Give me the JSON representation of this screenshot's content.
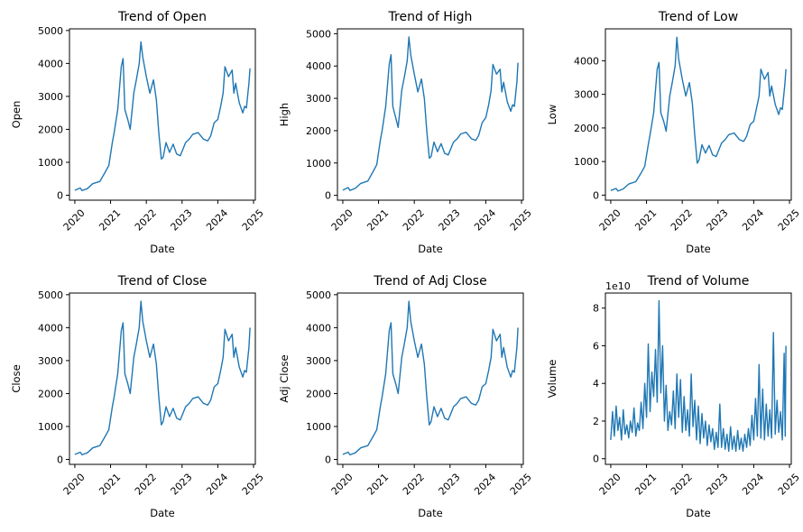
{
  "chart_data": [
    {
      "type": "line",
      "title": "Trend of Open",
      "xlabel": "Date",
      "ylabel": "Open",
      "xlim": [
        2019.85,
        2025.05
      ],
      "ylim": [
        -150,
        5050
      ],
      "xticks": [
        2020,
        2021,
        2022,
        2023,
        2024,
        2025
      ],
      "xtick_labels": [
        "2020",
        "2021",
        "2022",
        "2023",
        "2024",
        "2025"
      ],
      "yticks": [
        0,
        1000,
        2000,
        3000,
        4000,
        5000
      ],
      "ytick_labels": [
        "0",
        "1000",
        "2000",
        "3000",
        "4000",
        "5000"
      ],
      "offset_text": "",
      "series": [
        {
          "color": "#1f77b4",
          "x": [
            2020.0,
            2020.15,
            2020.2,
            2020.35,
            2020.5,
            2020.7,
            2020.85,
            2020.95,
            2021.05,
            2021.1,
            2021.2,
            2021.3,
            2021.35,
            2021.4,
            2021.48,
            2021.55,
            2021.65,
            2021.72,
            2021.8,
            2021.85,
            2021.9,
            2022.0,
            2022.1,
            2022.2,
            2022.28,
            2022.35,
            2022.42,
            2022.47,
            2022.55,
            2022.65,
            2022.75,
            2022.85,
            2022.95,
            2023.1,
            2023.2,
            2023.3,
            2023.45,
            2023.6,
            2023.72,
            2023.8,
            2023.9,
            2024.0,
            2024.08,
            2024.15,
            2024.2,
            2024.3,
            2024.4,
            2024.45,
            2024.5,
            2024.6,
            2024.7,
            2024.75,
            2024.8,
            2024.87,
            2024.9
          ],
          "y": [
            150,
            220,
            140,
            200,
            350,
            420,
            700,
            900,
            1600,
            1900,
            2600,
            3900,
            4150,
            2600,
            2300,
            2000,
            3100,
            3500,
            4000,
            4650,
            4200,
            3600,
            3100,
            3500,
            2900,
            1900,
            1100,
            1150,
            1600,
            1300,
            1550,
            1250,
            1200,
            1600,
            1700,
            1850,
            1900,
            1700,
            1650,
            1800,
            2200,
            2300,
            2700,
            3100,
            3900,
            3600,
            3800,
            3100,
            3400,
            2800,
            2500,
            2700,
            2650,
            3400,
            3850
          ]
        }
      ]
    },
    {
      "type": "line",
      "title": "Trend of High",
      "xlabel": "Date",
      "ylabel": "High",
      "xlim": [
        2019.85,
        2025.05
      ],
      "ylim": [
        -150,
        5150
      ],
      "xticks": [
        2020,
        2021,
        2022,
        2023,
        2024,
        2025
      ],
      "xtick_labels": [
        "2020",
        "2021",
        "2022",
        "2023",
        "2024",
        "2025"
      ],
      "yticks": [
        0,
        1000,
        2000,
        3000,
        4000,
        5000
      ],
      "ytick_labels": [
        "0",
        "1000",
        "2000",
        "3000",
        "4000",
        "5000"
      ],
      "offset_text": "",
      "series": [
        {
          "color": "#1f77b4",
          "x": [
            2020.0,
            2020.15,
            2020.2,
            2020.35,
            2020.5,
            2020.7,
            2020.85,
            2020.95,
            2021.05,
            2021.1,
            2021.2,
            2021.3,
            2021.35,
            2021.4,
            2021.48,
            2021.55,
            2021.65,
            2021.72,
            2021.8,
            2021.85,
            2021.9,
            2022.0,
            2022.1,
            2022.2,
            2022.28,
            2022.35,
            2022.42,
            2022.47,
            2022.55,
            2022.65,
            2022.75,
            2022.85,
            2022.95,
            2023.1,
            2023.2,
            2023.3,
            2023.45,
            2023.6,
            2023.72,
            2023.8,
            2023.9,
            2024.0,
            2024.08,
            2024.15,
            2024.2,
            2024.3,
            2024.4,
            2024.45,
            2024.5,
            2024.6,
            2024.7,
            2024.75,
            2024.8,
            2024.87,
            2024.9
          ],
          "y": [
            160,
            240,
            150,
            215,
            370,
            440,
            740,
            950,
            1700,
            2000,
            2750,
            4050,
            4350,
            2750,
            2400,
            2100,
            3250,
            3650,
            4150,
            4900,
            4350,
            3750,
            3200,
            3600,
            3000,
            2000,
            1150,
            1200,
            1650,
            1350,
            1600,
            1300,
            1250,
            1650,
            1750,
            1900,
            1950,
            1750,
            1700,
            1850,
            2250,
            2400,
            2800,
            3250,
            4050,
            3750,
            3900,
            3200,
            3500,
            2900,
            2600,
            2800,
            2750,
            3500,
            4100
          ]
        }
      ]
    },
    {
      "type": "line",
      "title": "Trend of Low",
      "xlabel": "Date",
      "ylabel": "Low",
      "xlim": [
        2019.85,
        2025.05
      ],
      "ylim": [
        -150,
        4950
      ],
      "xticks": [
        2020,
        2021,
        2022,
        2023,
        2024,
        2025
      ],
      "xtick_labels": [
        "2020",
        "2021",
        "2022",
        "2023",
        "2024",
        "2025"
      ],
      "yticks": [
        0,
        1000,
        2000,
        3000,
        4000
      ],
      "ytick_labels": [
        "0",
        "1000",
        "2000",
        "3000",
        "4000"
      ],
      "offset_text": "",
      "series": [
        {
          "color": "#1f77b4",
          "x": [
            2020.0,
            2020.15,
            2020.2,
            2020.35,
            2020.5,
            2020.7,
            2020.85,
            2020.95,
            2021.05,
            2021.1,
            2021.2,
            2021.3,
            2021.35,
            2021.4,
            2021.48,
            2021.55,
            2021.65,
            2021.72,
            2021.8,
            2021.85,
            2021.9,
            2022.0,
            2022.1,
            2022.2,
            2022.28,
            2022.35,
            2022.42,
            2022.47,
            2022.55,
            2022.65,
            2022.75,
            2022.85,
            2022.95,
            2023.1,
            2023.2,
            2023.3,
            2023.45,
            2023.6,
            2023.72,
            2023.8,
            2023.9,
            2024.0,
            2024.08,
            2024.15,
            2024.2,
            2024.3,
            2024.4,
            2024.45,
            2024.5,
            2024.6,
            2024.7,
            2024.75,
            2024.8,
            2024.87,
            2024.9
          ],
          "y": [
            140,
            200,
            120,
            185,
            330,
            400,
            660,
            860,
            1500,
            1800,
            2450,
            3750,
            3950,
            2450,
            2200,
            1900,
            2950,
            3350,
            3850,
            4700,
            4050,
            3450,
            2950,
            3350,
            2750,
            1800,
            950,
            1050,
            1500,
            1250,
            1480,
            1200,
            1150,
            1550,
            1650,
            1800,
            1850,
            1650,
            1600,
            1750,
            2100,
            2200,
            2600,
            2950,
            3750,
            3450,
            3650,
            2950,
            3250,
            2700,
            2400,
            2600,
            2550,
            3300,
            3750
          ]
        }
      ]
    },
    {
      "type": "line",
      "title": "Trend of Close",
      "xlabel": "Date",
      "ylabel": "Close",
      "xlim": [
        2019.85,
        2025.05
      ],
      "ylim": [
        -150,
        5050
      ],
      "xticks": [
        2020,
        2021,
        2022,
        2023,
        2024,
        2025
      ],
      "xtick_labels": [
        "2020",
        "2021",
        "2022",
        "2023",
        "2024",
        "2025"
      ],
      "yticks": [
        0,
        1000,
        2000,
        3000,
        4000,
        5000
      ],
      "ytick_labels": [
        "0",
        "1000",
        "2000",
        "3000",
        "4000",
        "5000"
      ],
      "offset_text": "",
      "series": [
        {
          "color": "#1f77b4",
          "x": [
            2020.0,
            2020.15,
            2020.2,
            2020.35,
            2020.5,
            2020.7,
            2020.85,
            2020.95,
            2021.05,
            2021.1,
            2021.2,
            2021.3,
            2021.35,
            2021.4,
            2021.48,
            2021.55,
            2021.65,
            2021.72,
            2021.8,
            2021.85,
            2021.9,
            2022.0,
            2022.1,
            2022.2,
            2022.28,
            2022.35,
            2022.42,
            2022.47,
            2022.55,
            2022.65,
            2022.75,
            2022.85,
            2022.95,
            2023.1,
            2023.2,
            2023.3,
            2023.45,
            2023.6,
            2023.72,
            2023.8,
            2023.9,
            2024.0,
            2024.08,
            2024.15,
            2024.2,
            2024.3,
            2024.4,
            2024.45,
            2024.5,
            2024.6,
            2024.7,
            2024.75,
            2024.8,
            2024.87,
            2024.9
          ],
          "y": [
            150,
            220,
            140,
            200,
            350,
            420,
            700,
            900,
            1600,
            1900,
            2600,
            3900,
            4150,
            2600,
            2300,
            2000,
            3100,
            3500,
            4000,
            4800,
            4200,
            3600,
            3100,
            3500,
            2900,
            1900,
            1050,
            1150,
            1600,
            1300,
            1550,
            1250,
            1200,
            1600,
            1700,
            1850,
            1900,
            1700,
            1650,
            1800,
            2200,
            2300,
            2700,
            3100,
            3950,
            3600,
            3800,
            3100,
            3400,
            2800,
            2500,
            2700,
            2650,
            3400,
            4000
          ]
        }
      ]
    },
    {
      "type": "line",
      "title": "Trend of Adj Close",
      "xlabel": "Date",
      "ylabel": "Adj Close",
      "xlim": [
        2019.85,
        2025.05
      ],
      "ylim": [
        -150,
        5050
      ],
      "xticks": [
        2020,
        2021,
        2022,
        2023,
        2024,
        2025
      ],
      "xtick_labels": [
        "2020",
        "2021",
        "2022",
        "2023",
        "2024",
        "2025"
      ],
      "yticks": [
        0,
        1000,
        2000,
        3000,
        4000,
        5000
      ],
      "ytick_labels": [
        "0",
        "1000",
        "2000",
        "3000",
        "4000",
        "5000"
      ],
      "offset_text": "",
      "series": [
        {
          "color": "#1f77b4",
          "x": [
            2020.0,
            2020.15,
            2020.2,
            2020.35,
            2020.5,
            2020.7,
            2020.85,
            2020.95,
            2021.05,
            2021.1,
            2021.2,
            2021.3,
            2021.35,
            2021.4,
            2021.48,
            2021.55,
            2021.65,
            2021.72,
            2021.8,
            2021.85,
            2021.9,
            2022.0,
            2022.1,
            2022.2,
            2022.28,
            2022.35,
            2022.42,
            2022.47,
            2022.55,
            2022.65,
            2022.75,
            2022.85,
            2022.95,
            2023.1,
            2023.2,
            2023.3,
            2023.45,
            2023.6,
            2023.72,
            2023.8,
            2023.9,
            2024.0,
            2024.08,
            2024.15,
            2024.2,
            2024.3,
            2024.4,
            2024.45,
            2024.5,
            2024.6,
            2024.7,
            2024.75,
            2024.8,
            2024.87,
            2024.9
          ],
          "y": [
            150,
            220,
            140,
            200,
            350,
            420,
            700,
            900,
            1600,
            1900,
            2600,
            3900,
            4150,
            2600,
            2300,
            2000,
            3100,
            3500,
            4000,
            4800,
            4200,
            3600,
            3100,
            3500,
            2900,
            1900,
            1050,
            1150,
            1600,
            1300,
            1550,
            1250,
            1200,
            1600,
            1700,
            1850,
            1900,
            1700,
            1650,
            1800,
            2200,
            2300,
            2700,
            3100,
            3950,
            3600,
            3800,
            3100,
            3400,
            2800,
            2500,
            2700,
            2650,
            3400,
            4000
          ]
        }
      ]
    },
    {
      "type": "line",
      "title": "Trend of Volume",
      "xlabel": "Date",
      "ylabel": "Volume",
      "xlim": [
        2019.85,
        2025.05
      ],
      "ylim": [
        -0.3,
        8.8
      ],
      "xticks": [
        2020,
        2021,
        2022,
        2023,
        2024,
        2025
      ],
      "xtick_labels": [
        "2020",
        "2021",
        "2022",
        "2023",
        "2024",
        "2025"
      ],
      "yticks": [
        0,
        2,
        4,
        6,
        8
      ],
      "ytick_labels": [
        "0",
        "2",
        "4",
        "6",
        "8"
      ],
      "offset_text": "1e10",
      "series": [
        {
          "color": "#1f77b4",
          "x": [
            2020.0,
            2020.05,
            2020.1,
            2020.15,
            2020.2,
            2020.25,
            2020.3,
            2020.35,
            2020.4,
            2020.45,
            2020.5,
            2020.55,
            2020.6,
            2020.65,
            2020.7,
            2020.75,
            2020.8,
            2020.85,
            2020.9,
            2020.95,
            2021.0,
            2021.05,
            2021.1,
            2021.15,
            2021.2,
            2021.25,
            2021.3,
            2021.35,
            2021.4,
            2021.45,
            2021.5,
            2021.55,
            2021.6,
            2021.65,
            2021.7,
            2021.75,
            2021.8,
            2021.85,
            2021.9,
            2021.95,
            2022.0,
            2022.05,
            2022.1,
            2022.15,
            2022.2,
            2022.25,
            2022.3,
            2022.35,
            2022.4,
            2022.45,
            2022.5,
            2022.55,
            2022.6,
            2022.65,
            2022.7,
            2022.75,
            2022.8,
            2022.85,
            2022.9,
            2022.95,
            2023.0,
            2023.05,
            2023.1,
            2023.15,
            2023.2,
            2023.25,
            2023.3,
            2023.35,
            2023.4,
            2023.45,
            2023.5,
            2023.55,
            2023.6,
            2023.65,
            2023.7,
            2023.75,
            2023.8,
            2023.85,
            2023.9,
            2023.95,
            2024.0,
            2024.05,
            2024.1,
            2024.15,
            2024.2,
            2024.25,
            2024.3,
            2024.35,
            2024.4,
            2024.45,
            2024.5,
            2024.55,
            2024.6,
            2024.65,
            2024.7,
            2024.75,
            2024.8,
            2024.85,
            2024.88,
            2024.9
          ],
          "y": [
            1.0,
            2.5,
            1.2,
            2.8,
            1.5,
            2.2,
            1.0,
            2.6,
            1.3,
            1.8,
            1.1,
            2.0,
            1.4,
            2.7,
            1.2,
            1.9,
            1.5,
            3.0,
            1.6,
            4.0,
            2.2,
            6.1,
            2.5,
            4.6,
            3.3,
            5.8,
            3.0,
            8.4,
            3.5,
            6.0,
            2.0,
            3.9,
            1.5,
            2.5,
            1.8,
            3.6,
            1.6,
            4.5,
            2.2,
            4.2,
            1.4,
            3.3,
            1.5,
            2.6,
            1.2,
            4.5,
            1.7,
            3.1,
            1.0,
            2.8,
            0.8,
            2.4,
            1.1,
            2.0,
            0.7,
            1.8,
            0.9,
            1.6,
            0.5,
            1.4,
            0.6,
            2.9,
            0.6,
            1.6,
            0.5,
            1.3,
            0.4,
            1.7,
            0.5,
            1.2,
            0.4,
            1.5,
            0.5,
            1.1,
            0.4,
            1.3,
            0.6,
            1.6,
            0.7,
            2.3,
            1.0,
            3.2,
            1.2,
            5.0,
            1.1,
            3.7,
            1.0,
            2.9,
            1.2,
            2.6,
            1.1,
            6.7,
            1.3,
            3.1,
            1.4,
            2.5,
            1.0,
            5.6,
            1.2,
            6.0
          ]
        }
      ]
    }
  ]
}
